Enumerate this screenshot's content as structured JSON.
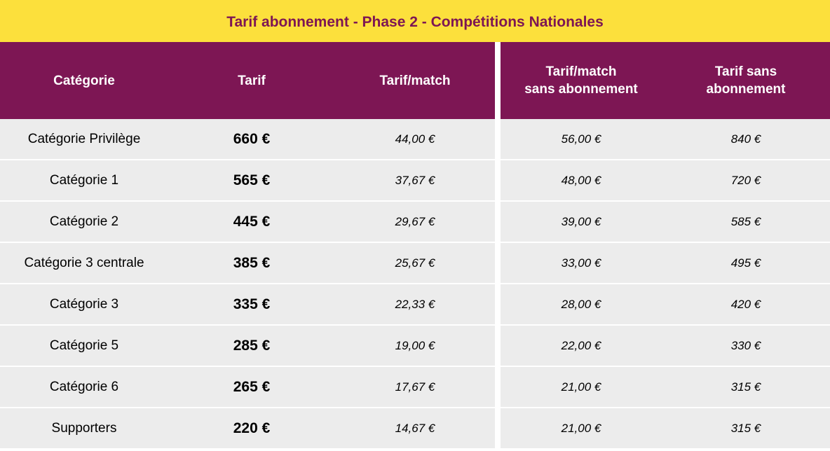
{
  "title": "Tarif abonnement - Phase 2 - Compétitions Nationales",
  "columns": {
    "categorie": "Catégorie",
    "tarif": "Tarif",
    "tarif_match": "Tarif/match",
    "tarif_match_sans_1": "Tarif/match",
    "tarif_match_sans_2": "sans abonnement",
    "tarif_sans_1": "Tarif sans",
    "tarif_sans_2": "abonnement"
  },
  "rows": [
    {
      "categorie": "Catégorie Privilège",
      "tarif": "660 €",
      "tarif_match": "44,00 €",
      "tarif_match_sans": "56,00 €",
      "tarif_sans": "840 €"
    },
    {
      "categorie": "Catégorie 1",
      "tarif": "565 €",
      "tarif_match": "37,67 €",
      "tarif_match_sans": "48,00 €",
      "tarif_sans": "720 €"
    },
    {
      "categorie": "Catégorie 2",
      "tarif": "445 €",
      "tarif_match": "29,67 €",
      "tarif_match_sans": "39,00 €",
      "tarif_sans": "585 €"
    },
    {
      "categorie": "Catégorie 3 centrale",
      "tarif": "385 €",
      "tarif_match": "25,67 €",
      "tarif_match_sans": "33,00 €",
      "tarif_sans": "495 €"
    },
    {
      "categorie": "Catégorie 3",
      "tarif": "335 €",
      "tarif_match": "22,33 €",
      "tarif_match_sans": "28,00 €",
      "tarif_sans": "420 €"
    },
    {
      "categorie": "Catégorie 5",
      "tarif": "285 €",
      "tarif_match": "19,00 €",
      "tarif_match_sans": "22,00 €",
      "tarif_sans": "330 €"
    },
    {
      "categorie": "Catégorie 6",
      "tarif": "265 €",
      "tarif_match": "17,67 €",
      "tarif_match_sans": "21,00 €",
      "tarif_sans": "315 €"
    },
    {
      "categorie": "Supporters",
      "tarif": "220 €",
      "tarif_match": "14,67 €",
      "tarif_match_sans": "21,00 €",
      "tarif_sans": "315 €"
    }
  ],
  "colors": {
    "banner": "#fce03c",
    "header": "#7d1654",
    "row": "#ececec"
  }
}
